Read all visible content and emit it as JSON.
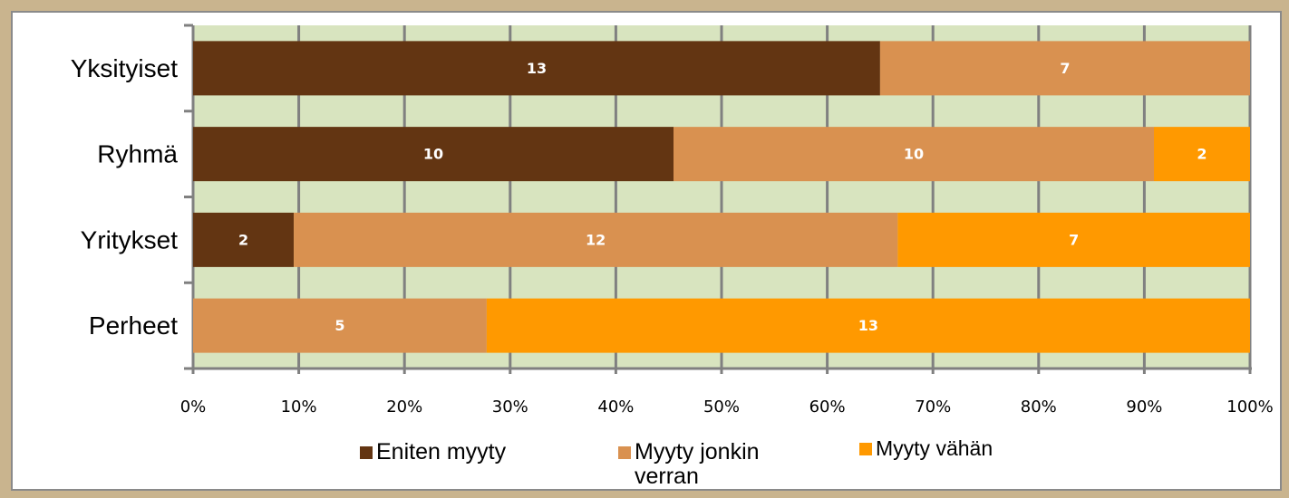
{
  "chart_data": {
    "type": "bar100h",
    "categories": [
      "Yksityiset",
      "Ryhmä",
      "Yritykset",
      "Perheet"
    ],
    "series": [
      {
        "name": "Eniten myyty",
        "color": "#633512",
        "values": [
          13,
          10,
          2,
          null
        ]
      },
      {
        "name": "Myyty jonkin verran",
        "color": "#d99150",
        "values": [
          7,
          10,
          12,
          5
        ]
      },
      {
        "name": "Myyty vähän",
        "color": "#ff9900",
        "values": [
          null,
          2,
          7,
          13
        ]
      }
    ],
    "xlim": [
      0,
      100
    ],
    "xticks": [
      {
        "value": 0,
        "label": "0%"
      },
      {
        "value": 10,
        "label": "10%"
      },
      {
        "value": 20,
        "label": "20%"
      },
      {
        "value": 30,
        "label": "30%"
      },
      {
        "value": 40,
        "label": "40%"
      },
      {
        "value": 50,
        "label": "50%"
      },
      {
        "value": 60,
        "label": "60%"
      },
      {
        "value": 70,
        "label": "70%"
      },
      {
        "value": 80,
        "label": "80%"
      },
      {
        "value": 90,
        "label": "90%"
      },
      {
        "value": 100,
        "label": "100%"
      }
    ],
    "grid": true
  }
}
